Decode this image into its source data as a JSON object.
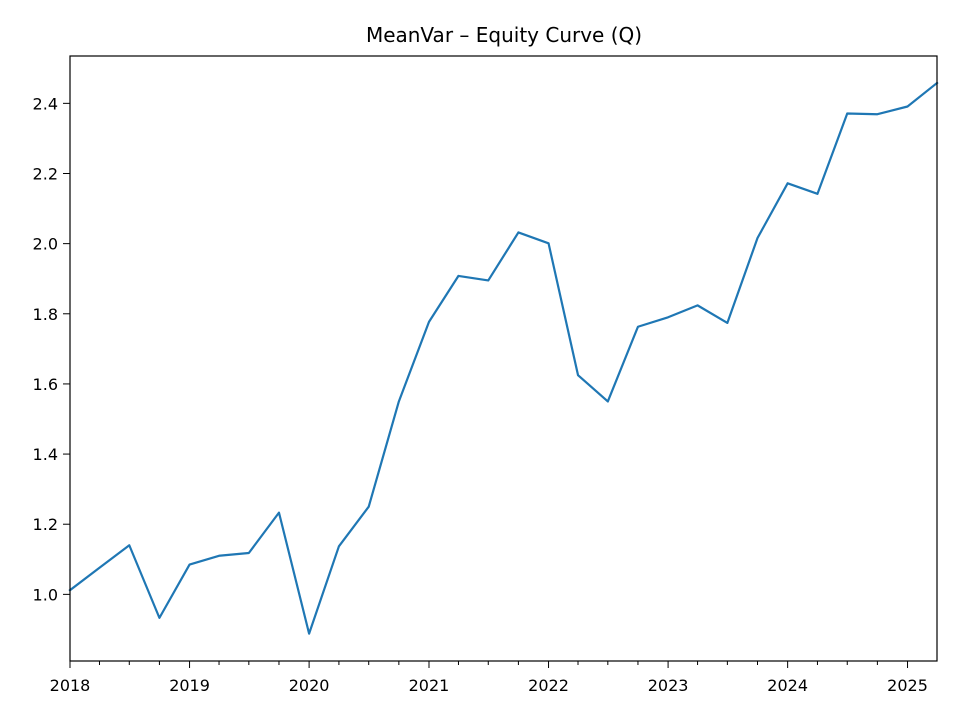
{
  "chart_data": {
    "type": "line",
    "title": "MeanVar – Equity Curve (Q)",
    "xlabel": "",
    "ylabel": "",
    "x": [
      "2018-01-01",
      "2018-04-01",
      "2018-07-01",
      "2018-10-01",
      "2019-01-01",
      "2019-04-01",
      "2019-07-01",
      "2019-10-01",
      "2020-01-01",
      "2020-04-01",
      "2020-07-01",
      "2020-10-01",
      "2021-01-01",
      "2021-04-01",
      "2021-07-01",
      "2021-10-01",
      "2022-01-01",
      "2022-04-01",
      "2022-07-01",
      "2022-10-01",
      "2023-01-01",
      "2023-04-01",
      "2023-07-01",
      "2023-10-01",
      "2024-01-01",
      "2024-04-01",
      "2024-07-01",
      "2024-10-01",
      "2025-01-01",
      "2025-04-01"
    ],
    "series": [
      {
        "values": [
          1.012,
          1.076,
          1.14,
          0.933,
          1.085,
          1.11,
          1.118,
          1.233,
          0.888,
          1.137,
          1.25,
          1.55,
          1.777,
          1.908,
          1.895,
          2.032,
          2.001,
          1.625,
          1.55,
          1.763,
          1.79,
          1.824,
          1.774,
          2.016,
          2.172,
          2.142,
          2.371,
          2.369,
          2.391,
          2.458
        ]
      }
    ],
    "xlim": [
      "2018-01-01",
      "2025-04-01"
    ],
    "ylim": [
      0.81,
      2.535
    ],
    "x_major_ticks": [
      "2018",
      "2019",
      "2020",
      "2021",
      "2022",
      "2023",
      "2024",
      "2025"
    ],
    "y_ticks": [
      1.0,
      1.2,
      1.4,
      1.6,
      1.8,
      2.0,
      2.2,
      2.4
    ],
    "y_tick_labels": [
      "1.0",
      "1.2",
      "1.4",
      "1.6",
      "1.8",
      "2.0",
      "2.2",
      "2.4"
    ],
    "grid": false,
    "legend": "none",
    "line_color": "#1f77b4"
  }
}
